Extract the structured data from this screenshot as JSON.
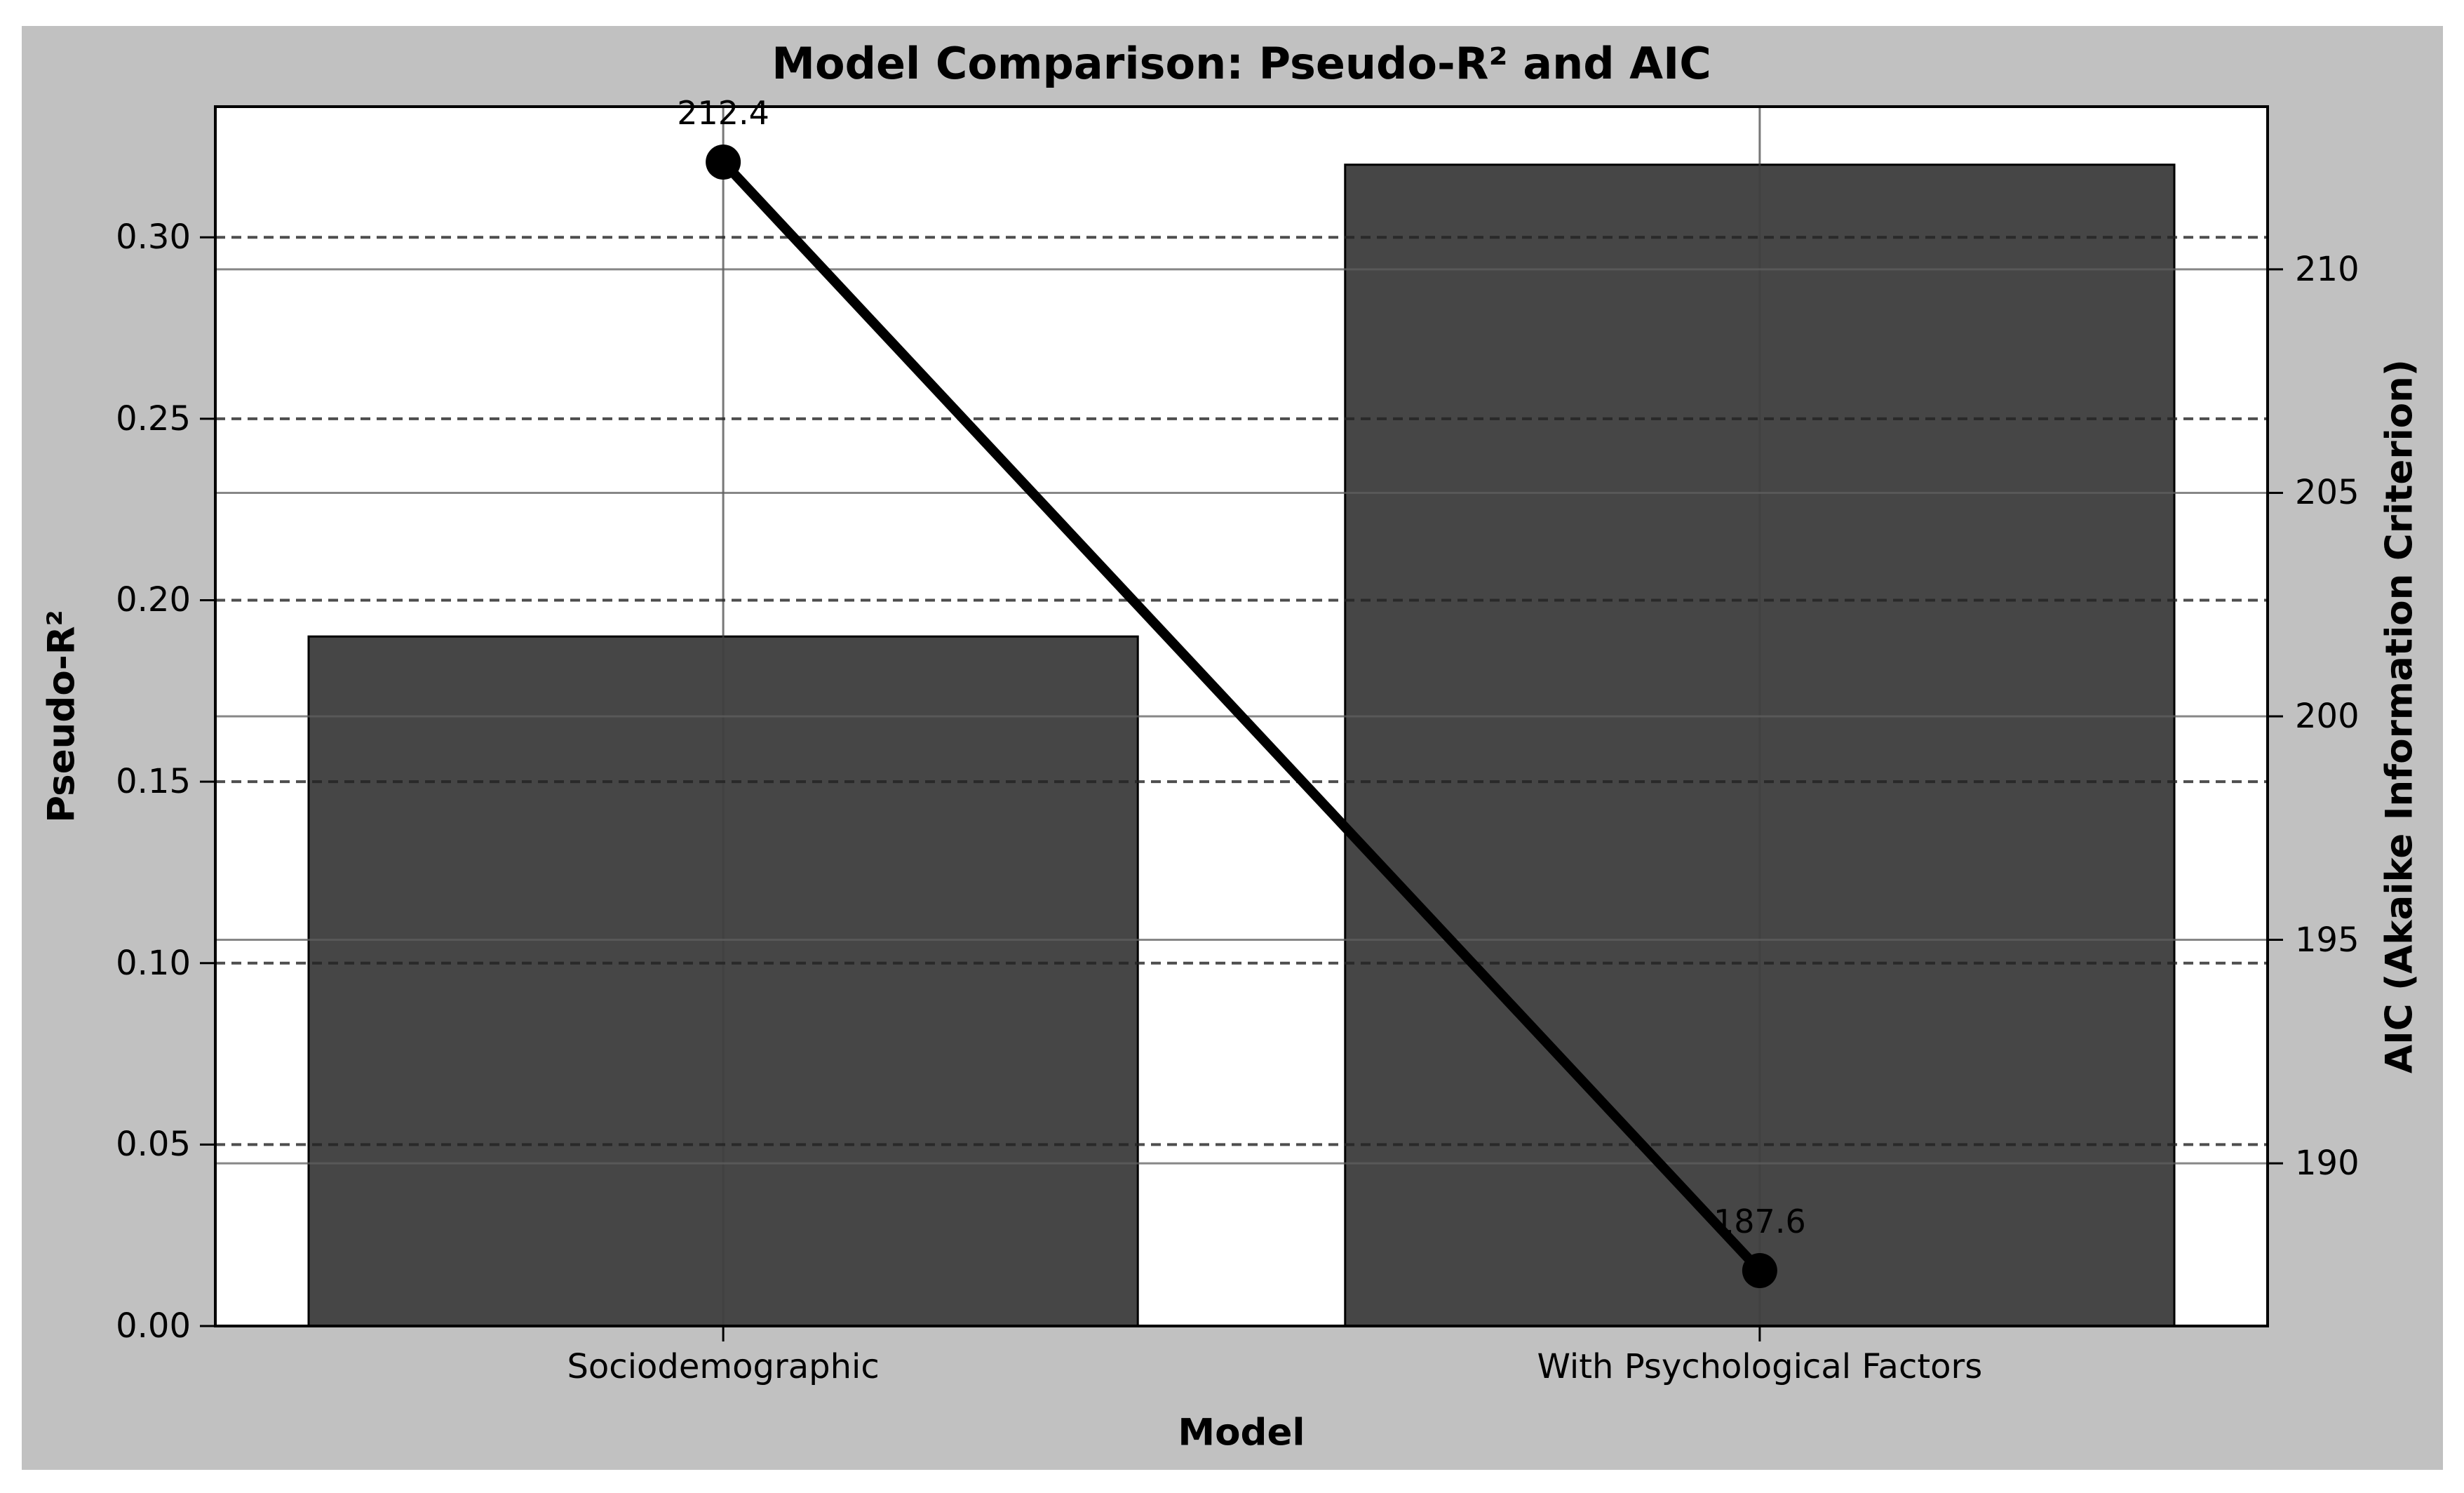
{
  "colors": {
    "figure_bg": "#c1c1c1",
    "plot_bg": "#ffffff",
    "bar_fill": "#464646",
    "bar_edge": "#000000",
    "line_color": "#000000",
    "grid_dashed": "#222222",
    "grid_solid": "#5f5f5f",
    "grid_vertical": "#3f3f3f",
    "spine": "#000000",
    "text": "#000000"
  },
  "chart_data": {
    "type": "bar",
    "title": "Model Comparison: Pseudo-R² and AIC",
    "xlabel": "Model",
    "categories": [
      "Sociodemographic",
      "With Psychological Factors"
    ],
    "xlim": [
      -0.49,
      1.49
    ],
    "bar_width": 0.8,
    "grid": "on",
    "legend": "none",
    "series": [
      {
        "name": "Pseudo-R²",
        "type": "bar",
        "axis": "left",
        "values": [
          0.19,
          0.32
        ]
      },
      {
        "name": "AIC",
        "type": "line",
        "axis": "right",
        "values": [
          212.4,
          187.6
        ],
        "point_labels": [
          "212.4",
          "187.6"
        ]
      }
    ],
    "left_axis": {
      "label": "Pseudo-R²",
      "lim": [
        0,
        0.336
      ],
      "ticks": [
        0.0,
        0.05,
        0.1,
        0.15,
        0.2,
        0.25,
        0.3
      ],
      "tick_labels": [
        "0.00",
        "0.05",
        "0.10",
        "0.15",
        "0.20",
        "0.25",
        "0.30"
      ],
      "grid_style": "dashed"
    },
    "right_axis": {
      "label": "AIC (Akaike Information Criterion)",
      "lim": [
        186.36,
        213.64
      ],
      "ticks": [
        190,
        195,
        200,
        205,
        210
      ],
      "tick_labels": [
        "190",
        "195",
        "200",
        "205",
        "210"
      ],
      "grid_style": "solid"
    }
  }
}
